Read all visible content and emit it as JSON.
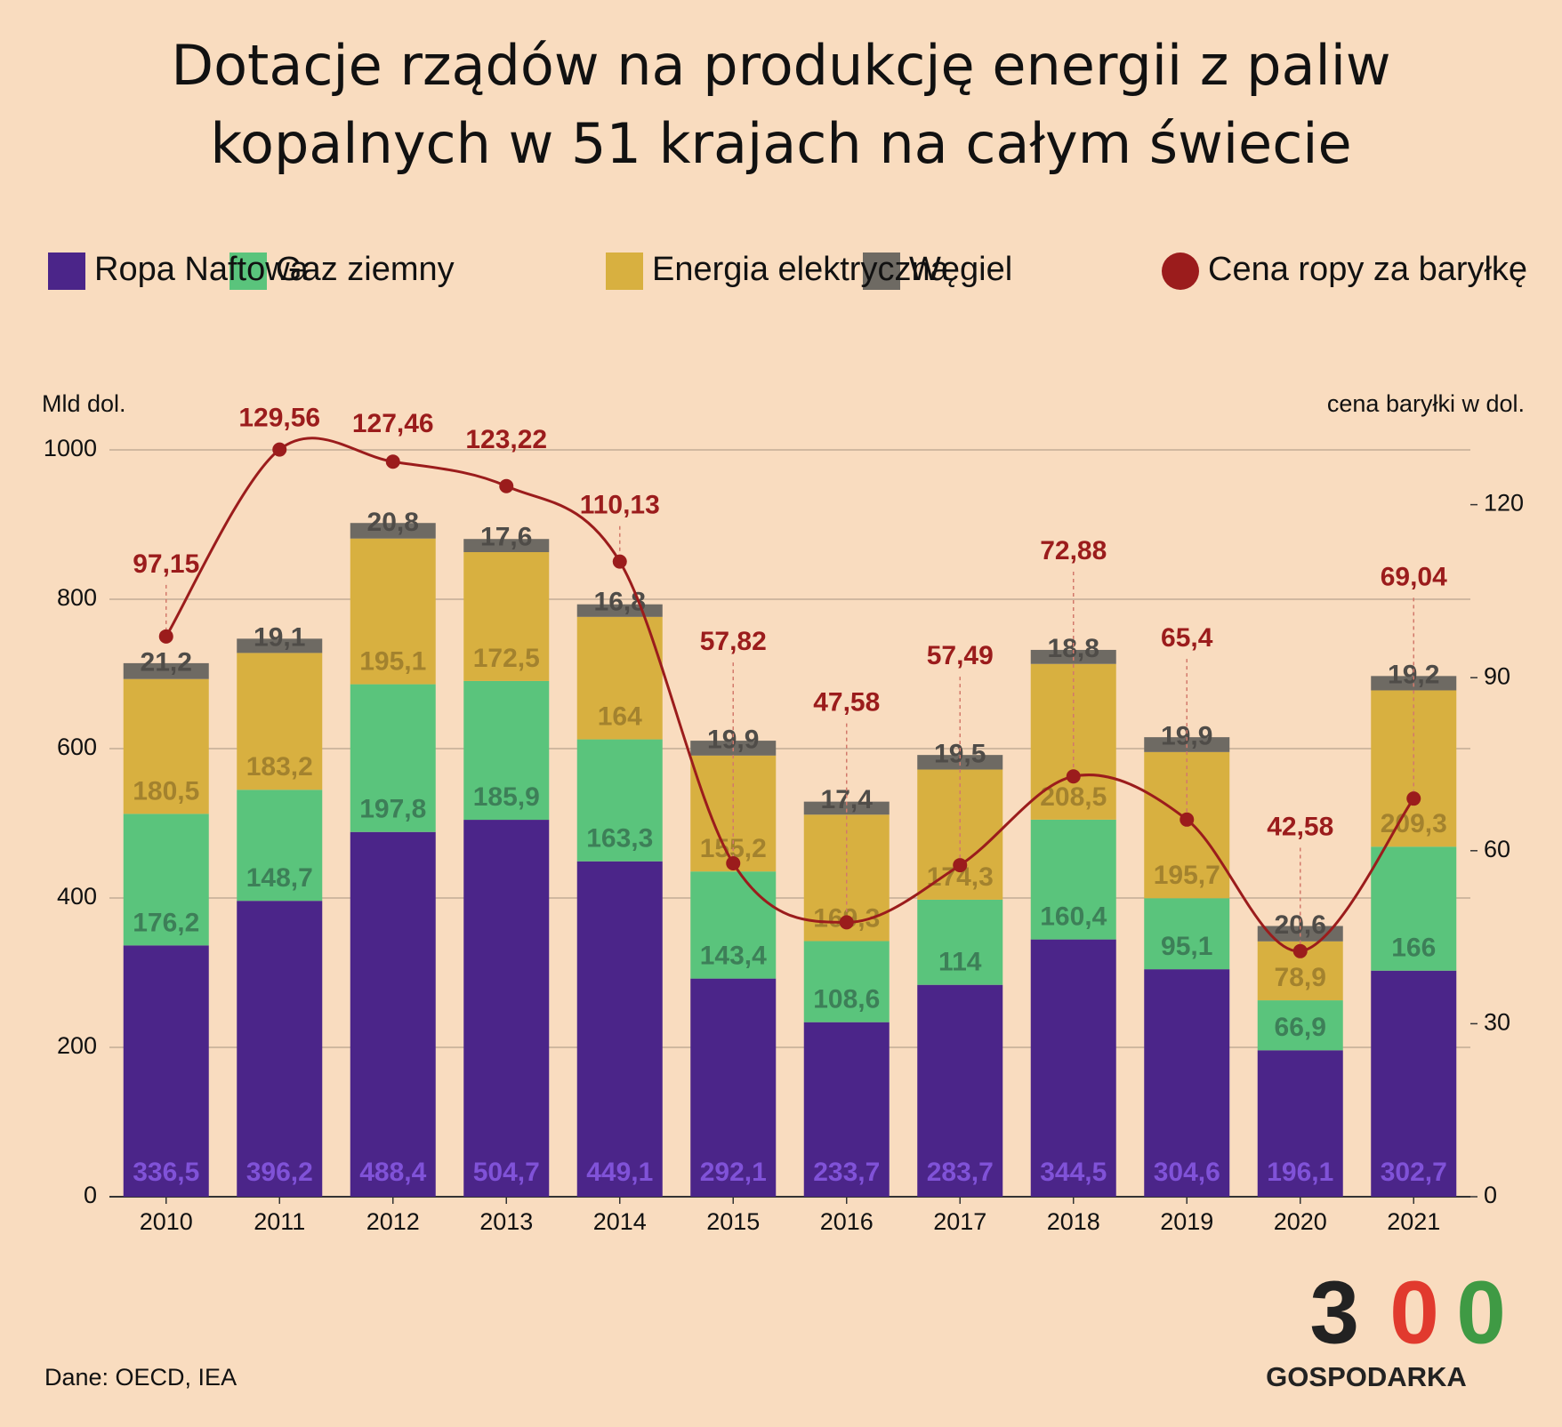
{
  "chart_data": {
    "type": "stacked_bar_line",
    "title": "Dotacje rządów na produkcję energii z paliw kopalnych w 51 krajach na całym świecie",
    "y_label": "Mld dol.",
    "y2_label": "cena baryłki w dol.",
    "source": "Dane: OECD, IEA",
    "logo": {
      "digits": [
        "3",
        "0",
        "0"
      ],
      "text": "GOSPODARKA"
    },
    "legend": "top",
    "categories": [
      "2010",
      "2011",
      "2012",
      "2013",
      "2014",
      "2015",
      "2016",
      "2017",
      "2018",
      "2019",
      "2020",
      "2021"
    ],
    "ylim": [
      0,
      1000
    ],
    "yticks": [
      0,
      200,
      400,
      600,
      800,
      1000
    ],
    "y2lim": [
      0,
      129.5
    ],
    "y2ticks": [
      0,
      30,
      60,
      90,
      120
    ],
    "grid": true,
    "series": [
      {
        "name": "Ropa Naftowa",
        "color": "#4b2589",
        "label_color": "#8052d8",
        "values": [
          336.5,
          396.2,
          488.4,
          504.7,
          449.1,
          292.1,
          233.7,
          283.7,
          344.5,
          304.6,
          196.1,
          302.7
        ],
        "value_labels": [
          "336,5",
          "396,2",
          "488,4",
          "504,7",
          "449,1",
          "292,1",
          "233,7",
          "283,7",
          "344,5",
          "304,6",
          "196,1",
          "302,7"
        ]
      },
      {
        "name": "Gaz ziemny",
        "color": "#5ac47c",
        "label_color": "#3d7f58",
        "values": [
          176.2,
          148.7,
          197.8,
          185.9,
          163.3,
          143.4,
          108.6,
          114,
          160.4,
          95.1,
          66.9,
          166
        ],
        "value_labels": [
          "176,2",
          "148,7",
          "197,8",
          "185,9",
          "163,3",
          "143,4",
          "108,6",
          "114",
          "160,4",
          "95,1",
          "66,9",
          "166"
        ]
      },
      {
        "name": "Energia elektryczna",
        "color": "#d8b040",
        "label_color": "#a3822e",
        "values": [
          180.5,
          183.2,
          195.1,
          172.5,
          164,
          155.2,
          169.3,
          174.3,
          208.5,
          195.7,
          78.9,
          209.3
        ],
        "value_labels": [
          "180,5",
          "183,2",
          "195,1",
          "172,5",
          "164",
          "155,2",
          "169,3",
          "174,3",
          "208,5",
          "195,7",
          "78,9",
          "209,3"
        ]
      },
      {
        "name": "Węgiel",
        "color": "#6e6a63",
        "label_color": "#4f4c48",
        "values": [
          21.2,
          19.1,
          20.8,
          17.6,
          16.8,
          19.9,
          17.4,
          19.5,
          18.8,
          19.9,
          20.6,
          19.2
        ],
        "value_labels": [
          "21,2",
          "19,1",
          "20,8",
          "17,6",
          "16,8",
          "19,9",
          "17,4",
          "19,5",
          "18,8",
          "19,9",
          "20,6",
          "19,2"
        ]
      },
      {
        "name": "Cena ropy za baryłkę",
        "color": "#9b1c1c",
        "axis": "y2",
        "type": "line",
        "values": [
          97.15,
          129.56,
          127.46,
          123.22,
          110.13,
          57.82,
          47.58,
          57.49,
          72.88,
          65.4,
          42.58,
          69.04
        ],
        "value_labels": [
          "97,15",
          "129,56",
          "127,46",
          "123,22",
          "110,13",
          "57,82",
          "47,58",
          "57,49",
          "72,88",
          "65,4",
          "42,58",
          "69,04"
        ]
      }
    ]
  }
}
